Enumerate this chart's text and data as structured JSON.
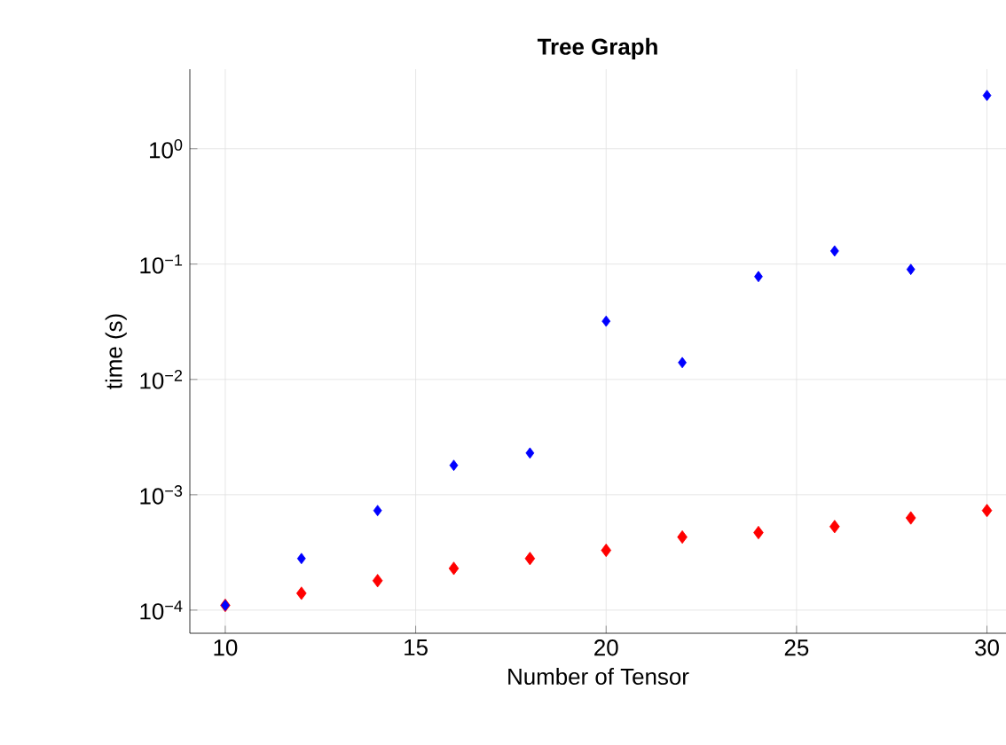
{
  "chart_data": {
    "type": "scatter",
    "title": "Tree Graph",
    "xlabel": "Number of Tensor",
    "ylabel": "time (s)",
    "log": "y",
    "grid": true,
    "marker": "diamond",
    "x": [
      10,
      12,
      14,
      16,
      18,
      20,
      22,
      24,
      26,
      28,
      30
    ],
    "series": [
      {
        "color": "#0000ff",
        "values": [
          0.00011,
          0.00028,
          0.00073,
          0.0018,
          0.0023,
          0.032,
          0.014,
          0.078,
          0.13,
          0.09,
          2.9
        ]
      },
      {
        "color": "#ff0000",
        "values": [
          0.00011,
          0.00014,
          0.00018,
          0.00023,
          0.00028,
          0.00033,
          0.00043,
          0.00047,
          0.00053,
          0.00063,
          0.00073
        ]
      }
    ],
    "xlim": [
      9.07,
      30.5
    ],
    "ylim": [
      6.3e-05,
      4.9
    ],
    "xticks": [
      10,
      15,
      20,
      25,
      30
    ],
    "yticks": [
      {
        "value": 0.0001,
        "label": "10$^{−4}$"
      },
      {
        "value": 0.001,
        "label": "10$^{−3}$"
      },
      {
        "value": 0.01,
        "label": "10$^{−2}$"
      },
      {
        "value": 0.1,
        "label": "10$^{−1}$"
      },
      {
        "value": 1,
        "label": "10$^{0}$"
      }
    ]
  }
}
